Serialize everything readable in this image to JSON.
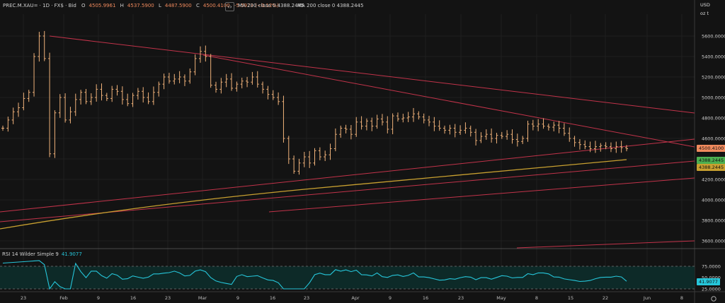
{
  "header": {
    "symbol": "PREC.M.XAU= · 1D · FX$ · Bid",
    "open_label": "O",
    "open": "4505.9961",
    "high_label": "H",
    "high": "4537.5900",
    "low_label": "L",
    "low": "4487.5900",
    "close_label": "C",
    "close": "4500.4100",
    "change": "-5.5973 (−0.12%)",
    "toggle_glyph": "‹›",
    "ma1_label": "MA 200 close 0",
    "ma1_value": "4388.2445",
    "ma2_label": "MA 200 close 0",
    "ma2_value": "4388.2445"
  },
  "price_axis": {
    "currency": "USD",
    "unit": "oz t",
    "ticks": [
      "5600.0000",
      "5400.0000",
      "5200.0000",
      "5000.0000",
      "4800.0000",
      "4600.0000",
      "4400.0000",
      "4200.0000",
      "4000.0000",
      "3800.0000",
      "3600.0000"
    ],
    "last_price_tag": "4500.4100",
    "ma_tag_1": "4388.2445",
    "ma_tag_2": "4388.2445"
  },
  "rsi": {
    "label": "RSI 14 Wilder Simple 9",
    "value": "41.9077",
    "ticks": [
      "75.0000",
      "50.0000",
      "25.0000"
    ],
    "value_tag": "41.9077"
  },
  "time_axis": [
    "23",
    "Feb",
    "9",
    "16",
    "23",
    "Mar",
    "9",
    "16",
    "23",
    "Apr",
    "9",
    "16",
    "23",
    "May",
    "8",
    "15",
    "22",
    "Jun",
    "8"
  ],
  "colors": {
    "background": "#131313",
    "bars": "#f0b27a",
    "trendline": "#c2334a",
    "ma": "#c8a030",
    "rsi": "#26c6da",
    "last_price": "#f08a5d",
    "ma_tag": "#4caf50"
  },
  "chart_data": {
    "type": "bar",
    "series_ohlc_close_approx": [
      4700,
      4780,
      4860,
      4900,
      4990,
      5050,
      5400,
      5600,
      5380,
      4450,
      4850,
      5000,
      4780,
      4860,
      4980,
      5050,
      4960,
      5000,
      5080,
      5020,
      4990,
      5080,
      5060,
      4980,
      4940,
      5020,
      5060,
      5000,
      4960,
      5050,
      5130,
      5200,
      5160,
      5180,
      5200,
      5160,
      5250,
      5380,
      5450,
      5400,
      5120,
      5080,
      5150,
      5180,
      5090,
      5130,
      5160,
      5150,
      5200,
      5130,
      5080,
      5030,
      5000,
      4960,
      4600,
      4400,
      4280,
      4360,
      4420,
      4360,
      4480,
      4420,
      4440,
      4500,
      4640,
      4700,
      4690,
      4640,
      4760,
      4720,
      4770,
      4720,
      4790,
      4760,
      4690,
      4820,
      4790,
      4800,
      4810,
      4840,
      4810,
      4780,
      4760,
      4720,
      4700,
      4680,
      4700,
      4660,
      4680,
      4700,
      4660,
      4580,
      4620,
      4640,
      4600,
      4630,
      4620,
      4640,
      4590,
      4570,
      4600,
      4740,
      4720,
      4740,
      4720,
      4710,
      4730,
      4700,
      4650,
      4600,
      4560,
      4540,
      4520,
      4500,
      4520,
      4530,
      4520,
      4500,
      4520,
      4510,
      4500
    ],
    "ma200_last": 4388.2445,
    "rsi_last": 41.9077,
    "ylim": [
      3500,
      5750
    ],
    "rsi_range": [
      0,
      100
    ]
  }
}
